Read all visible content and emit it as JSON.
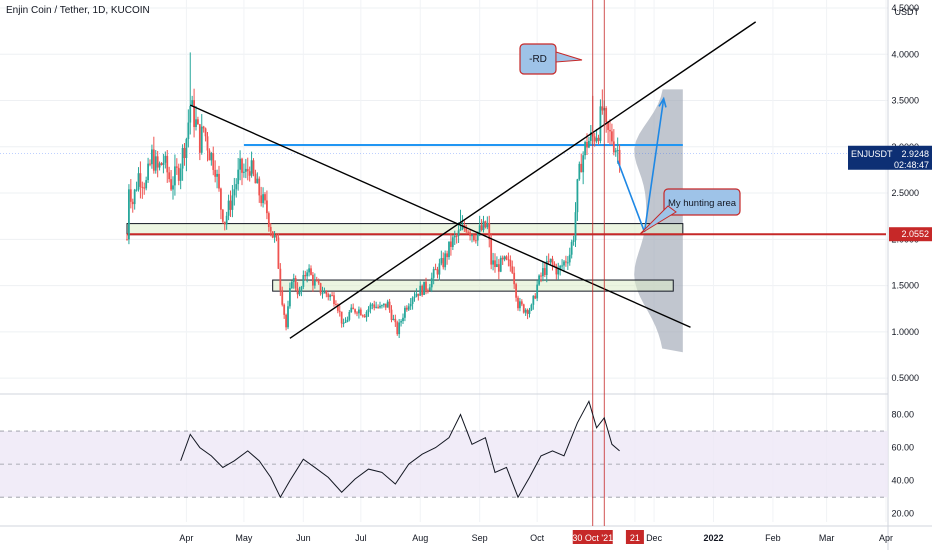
{
  "header": {
    "title": "Enjin Coin / Tether, 1D, KUCOIN"
  },
  "colors": {
    "up": "#26a69a",
    "down": "#ef5350",
    "trendline": "#000000",
    "support_line": "#2196f3",
    "horizontal_red": "#c62828",
    "volume_profile": "#9fa8b5",
    "rsi_band": "#ede7f6",
    "rsi_line": "#131722",
    "price_tag": "#0d2f74",
    "callout_fill": "#9ec3e8"
  },
  "annotations": {
    "rd_label": "-RD",
    "hunting_label": "My hunting area"
  },
  "price_tags": {
    "symbol": "ENJUSDT",
    "last": "2.9248",
    "countdown": "02:48:47",
    "level": "2.0552"
  },
  "chart_data": {
    "type": "candlestick",
    "title": "Enjin Coin / Tether, 1D, KUCOIN",
    "ylabel": "USDT",
    "ylim": [
      0.35,
      4.5
    ],
    "y_ticks": [
      "4.5000",
      "4.0000",
      "3.5000",
      "3.0000",
      "2.5000",
      "2.0000",
      "1.5000",
      "1.0000",
      "0.5000"
    ],
    "x_ticks": [
      "Apr",
      "May",
      "Jun",
      "Jul",
      "Aug",
      "Sep",
      "Oct",
      "30 Oct '21",
      "21",
      "Dec",
      "2022",
      "Feb",
      "Mar",
      "Apr"
    ],
    "x_range": [
      "2021-03-01",
      "2022-04-01"
    ],
    "grid": true,
    "price_path": [
      [
        "2021-03-01",
        2.0
      ],
      [
        "2021-03-02",
        2.6
      ],
      [
        "2021-03-04",
        2.4
      ],
      [
        "2021-03-07",
        2.7
      ],
      [
        "2021-03-11",
        2.6
      ],
      [
        "2021-03-14",
        2.9
      ],
      [
        "2021-03-17",
        2.75
      ],
      [
        "2021-03-20",
        2.85
      ],
      [
        "2021-03-24",
        2.6
      ],
      [
        "2021-03-28",
        2.75
      ],
      [
        "2021-04-01",
        3.1
      ],
      [
        "2021-04-03",
        3.45
      ],
      [
        "2021-04-06",
        3.25
      ],
      [
        "2021-04-08",
        3.05
      ],
      [
        "2021-04-10",
        3.2
      ],
      [
        "2021-04-13",
        2.95
      ],
      [
        "2021-04-16",
        2.8
      ],
      [
        "2021-04-19",
        2.35
      ],
      [
        "2021-04-21",
        2.2
      ],
      [
        "2021-04-24",
        2.4
      ],
      [
        "2021-04-26",
        2.55
      ],
      [
        "2021-04-29",
        2.75
      ],
      [
        "2021-05-02",
        2.7
      ],
      [
        "2021-05-04",
        2.8
      ],
      [
        "2021-05-07",
        2.6
      ],
      [
        "2021-05-10",
        2.45
      ],
      [
        "2021-05-13",
        2.3
      ],
      [
        "2021-05-16",
        2.05
      ],
      [
        "2021-05-18",
        1.95
      ],
      [
        "2021-05-20",
        1.5
      ],
      [
        "2021-05-23",
        1.05
      ],
      [
        "2021-05-26",
        1.6
      ],
      [
        "2021-05-30",
        1.4
      ],
      [
        "2021-06-03",
        1.7
      ],
      [
        "2021-06-06",
        1.55
      ],
      [
        "2021-06-10",
        1.45
      ],
      [
        "2021-06-14",
        1.4
      ],
      [
        "2021-06-18",
        1.35
      ],
      [
        "2021-06-22",
        1.05
      ],
      [
        "2021-06-25",
        1.2
      ],
      [
        "2021-06-29",
        1.25
      ],
      [
        "2021-07-03",
        1.2
      ],
      [
        "2021-07-07",
        1.3
      ],
      [
        "2021-07-11",
        1.25
      ],
      [
        "2021-07-15",
        1.3
      ],
      [
        "2021-07-20",
        1.0
      ],
      [
        "2021-07-24",
        1.25
      ],
      [
        "2021-07-28",
        1.4
      ],
      [
        "2021-08-01",
        1.45
      ],
      [
        "2021-08-05",
        1.5
      ],
      [
        "2021-08-09",
        1.65
      ],
      [
        "2021-08-13",
        1.75
      ],
      [
        "2021-08-17",
        1.95
      ],
      [
        "2021-08-21",
        2.05
      ],
      [
        "2021-08-25",
        2.15
      ],
      [
        "2021-08-29",
        2.05
      ],
      [
        "2021-09-02",
        2.1
      ],
      [
        "2021-09-05",
        2.15
      ],
      [
        "2021-09-07",
        1.75
      ],
      [
        "2021-09-10",
        1.7
      ],
      [
        "2021-09-14",
        1.75
      ],
      [
        "2021-09-18",
        1.7
      ],
      [
        "2021-09-21",
        1.3
      ],
      [
        "2021-09-24",
        1.25
      ],
      [
        "2021-09-28",
        1.25
      ],
      [
        "2021-10-01",
        1.5
      ],
      [
        "2021-10-04",
        1.65
      ],
      [
        "2021-10-08",
        1.75
      ],
      [
        "2021-10-12",
        1.65
      ],
      [
        "2021-10-15",
        1.75
      ],
      [
        "2021-10-18",
        1.85
      ],
      [
        "2021-10-20",
        2.05
      ],
      [
        "2021-10-22",
        2.55
      ],
      [
        "2021-10-24",
        2.85
      ],
      [
        "2021-10-27",
        3.05
      ],
      [
        "2021-10-30",
        3.1
      ],
      [
        "2021-11-02",
        3.2
      ],
      [
        "2021-11-04",
        3.4
      ],
      [
        "2021-11-06",
        3.15
      ],
      [
        "2021-11-09",
        3.1
      ],
      [
        "2021-11-11",
        3.0
      ],
      [
        "2021-11-13",
        2.9248
      ]
    ],
    "rsi": {
      "levels": [
        70,
        50,
        30
      ],
      "y_ticks": [
        "80.00",
        "60.00",
        "40.00",
        "20.00"
      ],
      "ylim": [
        15,
        90
      ],
      "path": [
        [
          "2021-03-29",
          52
        ],
        [
          "2021-04-03",
          68
        ],
        [
          "2021-04-08",
          60
        ],
        [
          "2021-04-14",
          55
        ],
        [
          "2021-04-20",
          48
        ],
        [
          "2021-04-26",
          52
        ],
        [
          "2021-05-03",
          58
        ],
        [
          "2021-05-09",
          52
        ],
        [
          "2021-05-15",
          42
        ],
        [
          "2021-05-20",
          30
        ],
        [
          "2021-05-25",
          40
        ],
        [
          "2021-06-01",
          53
        ],
        [
          "2021-06-07",
          48
        ],
        [
          "2021-06-14",
          42
        ],
        [
          "2021-06-21",
          33
        ],
        [
          "2021-06-28",
          41
        ],
        [
          "2021-07-05",
          47
        ],
        [
          "2021-07-12",
          45
        ],
        [
          "2021-07-19",
          38
        ],
        [
          "2021-07-26",
          50
        ],
        [
          "2021-08-02",
          56
        ],
        [
          "2021-08-09",
          60
        ],
        [
          "2021-08-16",
          66
        ],
        [
          "2021-08-22",
          80
        ],
        [
          "2021-08-28",
          62
        ],
        [
          "2021-09-04",
          66
        ],
        [
          "2021-09-09",
          45
        ],
        [
          "2021-09-15",
          48
        ],
        [
          "2021-09-21",
          30
        ],
        [
          "2021-09-27",
          42
        ],
        [
          "2021-10-03",
          55
        ],
        [
          "2021-10-09",
          58
        ],
        [
          "2021-10-15",
          55
        ],
        [
          "2021-10-22",
          75
        ],
        [
          "2021-10-28",
          88
        ],
        [
          "2021-11-01",
          72
        ],
        [
          "2021-11-05",
          78
        ],
        [
          "2021-11-09",
          62
        ],
        [
          "2021-11-13",
          58
        ]
      ]
    },
    "horizontal_lines": [
      {
        "price": 3.02,
        "from": "2021-05-01",
        "to": "2021-12-16",
        "color": "blue"
      },
      {
        "price": 2.0552,
        "from": "2021-03-01",
        "to": "2022-04-01",
        "color": "red"
      }
    ],
    "trendlines": [
      {
        "from": [
          "2021-04-03",
          3.45
        ],
        "to": [
          "2021-12-20",
          1.05
        ]
      },
      {
        "from": [
          "2021-05-25",
          0.93
        ],
        "to": [
          "2022-01-23",
          4.35
        ]
      }
    ],
    "zones": [
      {
        "from": "2021-03-01",
        "to": "2021-12-16",
        "low": 2.05,
        "high": 2.17
      },
      {
        "from": "2021-05-16",
        "to": "2021-12-11",
        "low": 1.44,
        "high": 1.56
      }
    ],
    "vertical_lines": [
      "2021-10-30",
      "2021-11-05"
    ],
    "projection": [
      [
        "2021-11-12",
        2.85
      ],
      [
        "2021-11-26",
        2.08
      ],
      [
        "2021-12-06",
        3.52
      ]
    ]
  }
}
